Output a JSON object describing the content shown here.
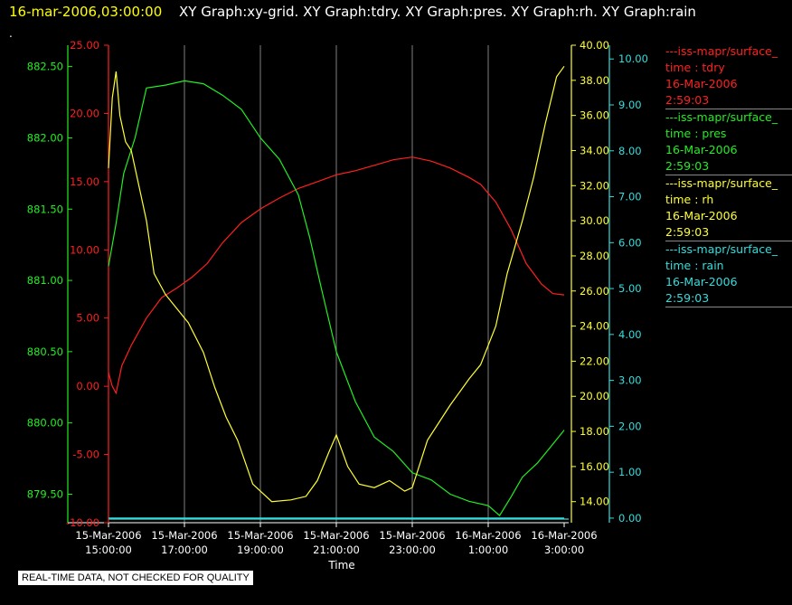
{
  "header": {
    "time": "16-mar-2006,03:00:00",
    "graphs": "XY Graph:xy-grid.  XY Graph:tdry.  XY Graph:pres.  XY Graph:rh.  XY Graph:rain"
  },
  "dot": ".",
  "legend": [
    {
      "name": "---iss-mapr/surface_",
      "var": "time : tdry",
      "date": "16-Mar-2006",
      "time": "2:59:03",
      "color": "#ff2020"
    },
    {
      "name": "---iss-mapr/surface_",
      "var": "time : pres",
      "date": "16-Mar-2006",
      "time": "2:59:03",
      "color": "#22ee22"
    },
    {
      "name": "---iss-mapr/surface_",
      "var": "time : rh",
      "date": "16-Mar-2006",
      "time": "2:59:03",
      "color": "#ffff33"
    },
    {
      "name": "---iss-mapr/surface_",
      "var": "time : rain",
      "date": "16-Mar-2006",
      "time": "2:59:03",
      "color": "#33dddd"
    }
  ],
  "disclaimer": "REAL-TIME DATA, NOT CHECKED FOR QUALITY",
  "chart_data": {
    "type": "line",
    "title": "",
    "xlabel": "Time",
    "x_ticks": [
      [
        "15-Mar-2006",
        "15:00:00"
      ],
      [
        "15-Mar-2006",
        "17:00:00"
      ],
      [
        "15-Mar-2006",
        "19:00:00"
      ],
      [
        "15-Mar-2006",
        "21:00:00"
      ],
      [
        "15-Mar-2006",
        "23:00:00"
      ],
      [
        "16-Mar-2006",
        "1:00:00"
      ],
      [
        "16-Mar-2006",
        "3:00:00"
      ]
    ],
    "xlim_hours": [
      15,
      27
    ],
    "grid": true,
    "axes": {
      "pres": {
        "color": "#22ee22",
        "ylim": [
          879.3,
          882.65
        ],
        "ticks": [
          "882.50",
          "882.00",
          "881.50",
          "881.00",
          "880.50",
          "880.00",
          "879.50"
        ],
        "tick_values": [
          882.5,
          882.0,
          881.5,
          881.0,
          880.5,
          880.0,
          879.5
        ]
      },
      "tdry": {
        "color": "#ff2020",
        "ylim": [
          -10,
          25
        ],
        "ticks": [
          "25.00",
          "20.00",
          "15.00",
          "10.00",
          "5.00",
          "0.00",
          "-5.00",
          "-10.00"
        ],
        "tick_values": [
          25,
          20,
          15,
          10,
          5,
          0,
          -5,
          -10
        ]
      },
      "rh": {
        "color": "#ffff33",
        "ylim": [
          12.8,
          40
        ],
        "ticks": [
          "40.00",
          "38.00",
          "36.00",
          "34.00",
          "32.00",
          "30.00",
          "28.00",
          "26.00",
          "24.00",
          "22.00",
          "20.00",
          "18.00",
          "16.00",
          "14.00"
        ],
        "tick_values": [
          40,
          38,
          36,
          34,
          32,
          30,
          28,
          26,
          24,
          22,
          20,
          18,
          16,
          14
        ]
      },
      "rain": {
        "color": "#33dddd",
        "ylim": [
          -0.1,
          10.3
        ],
        "ticks": [
          "10.00",
          "9.00",
          "8.00",
          "7.00",
          "6.00",
          "5.00",
          "4.00",
          "3.00",
          "2.00",
          "1.00",
          "0.00"
        ],
        "tick_values": [
          10,
          9,
          8,
          7,
          6,
          5,
          4,
          3,
          2,
          1,
          0
        ]
      }
    },
    "series": [
      {
        "name": "tdry",
        "axis": "tdry",
        "color": "#ff2020",
        "x": [
          15.0,
          15.1,
          15.2,
          15.35,
          15.6,
          16.0,
          16.4,
          16.8,
          17.2,
          17.6,
          18.0,
          18.5,
          19.0,
          19.5,
          20.0,
          20.5,
          21.0,
          21.5,
          22.0,
          22.5,
          23.0,
          23.5,
          24.0,
          24.5,
          24.8,
          25.2,
          25.6,
          26.0,
          26.4,
          26.7,
          27.0
        ],
        "values": [
          1.0,
          0.0,
          -0.5,
          1.5,
          3.0,
          5.0,
          6.5,
          7.2,
          8.0,
          9.0,
          10.5,
          12.0,
          13.0,
          13.8,
          14.5,
          15.0,
          15.5,
          15.8,
          16.2,
          16.6,
          16.8,
          16.5,
          16.0,
          15.3,
          14.8,
          13.5,
          11.5,
          9.0,
          7.5,
          6.8,
          6.7
        ]
      },
      {
        "name": "pres",
        "axis": "pres",
        "color": "#22ee22",
        "x": [
          15.0,
          15.2,
          15.4,
          15.7,
          16.0,
          16.5,
          17.0,
          17.5,
          18.0,
          18.5,
          19.0,
          19.5,
          20.0,
          20.3,
          20.6,
          21.0,
          21.5,
          22.0,
          22.5,
          23.0,
          23.5,
          24.0,
          24.5,
          25.0,
          25.3,
          25.6,
          25.9,
          26.3,
          26.7,
          27.0
        ],
        "values": [
          881.1,
          881.4,
          881.75,
          882.0,
          882.35,
          882.37,
          882.4,
          882.38,
          882.3,
          882.2,
          882.0,
          881.85,
          881.6,
          881.3,
          880.95,
          880.5,
          880.15,
          879.9,
          879.8,
          879.65,
          879.6,
          879.5,
          879.45,
          879.42,
          879.35,
          879.48,
          879.62,
          879.72,
          879.85,
          879.95
        ]
      },
      {
        "name": "rh",
        "axis": "rh",
        "color": "#ffff33",
        "x": [
          15.0,
          15.1,
          15.2,
          15.3,
          15.45,
          15.6,
          15.8,
          16.0,
          16.2,
          16.5,
          16.8,
          17.1,
          17.5,
          17.8,
          18.1,
          18.4,
          18.8,
          19.3,
          19.8,
          20.2,
          20.5,
          20.8,
          21.0,
          21.3,
          21.6,
          22.0,
          22.4,
          22.8,
          23.0,
          23.4,
          24.0,
          24.5,
          24.8,
          25.2,
          25.5,
          25.9,
          26.2,
          26.5,
          26.8,
          27.0
        ],
        "values": [
          33.0,
          37.0,
          38.5,
          36.0,
          34.5,
          34.0,
          32.0,
          30.0,
          27.0,
          25.8,
          25.0,
          24.2,
          22.5,
          20.5,
          18.8,
          17.5,
          15.0,
          14.0,
          14.1,
          14.3,
          15.2,
          16.8,
          17.8,
          16.0,
          15.0,
          14.8,
          15.2,
          14.6,
          14.8,
          17.5,
          19.5,
          21.0,
          21.8,
          24.0,
          27.0,
          30.0,
          32.5,
          35.5,
          38.2,
          38.8
        ]
      },
      {
        "name": "rain",
        "axis": "rain",
        "color": "#33dddd",
        "x": [
          15.0,
          27.0
        ],
        "values": [
          0.0,
          0.0
        ]
      }
    ]
  }
}
